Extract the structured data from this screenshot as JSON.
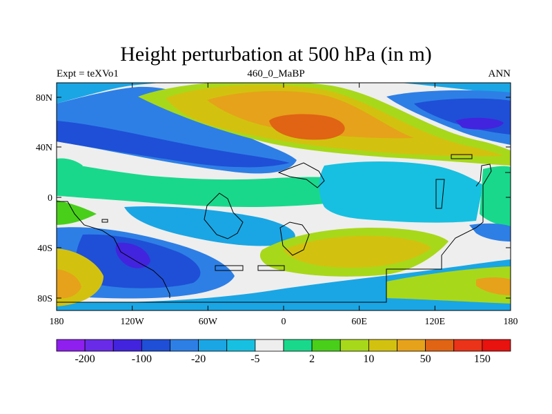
{
  "title": "Height perturbation at 500 hPa (in m)",
  "subtitle": {
    "left": "Expt = teXVo1",
    "center": "460_0_MaBP",
    "right": "ANN"
  },
  "axes": {
    "x_ticks": [
      "180",
      "120W",
      "60W",
      "0",
      "60E",
      "120E",
      "180"
    ],
    "y_ticks": [
      "80N",
      "40N",
      "0",
      "40S",
      "80S"
    ]
  },
  "colorbar": {
    "colors": [
      "#8f1fef",
      "#6a2be8",
      "#4224de",
      "#1f4fd6",
      "#2d7fe6",
      "#1aa6e4",
      "#17c0e0",
      "#eeeeee",
      "#19d88c",
      "#49cf1a",
      "#a8d81a",
      "#d2c20f",
      "#e6a21a",
      "#e06414",
      "#ea3318",
      "#e8120f"
    ],
    "labels": [
      "-200",
      "-100",
      "-20",
      "-5",
      "2",
      "10",
      "50",
      "150"
    ]
  }
}
